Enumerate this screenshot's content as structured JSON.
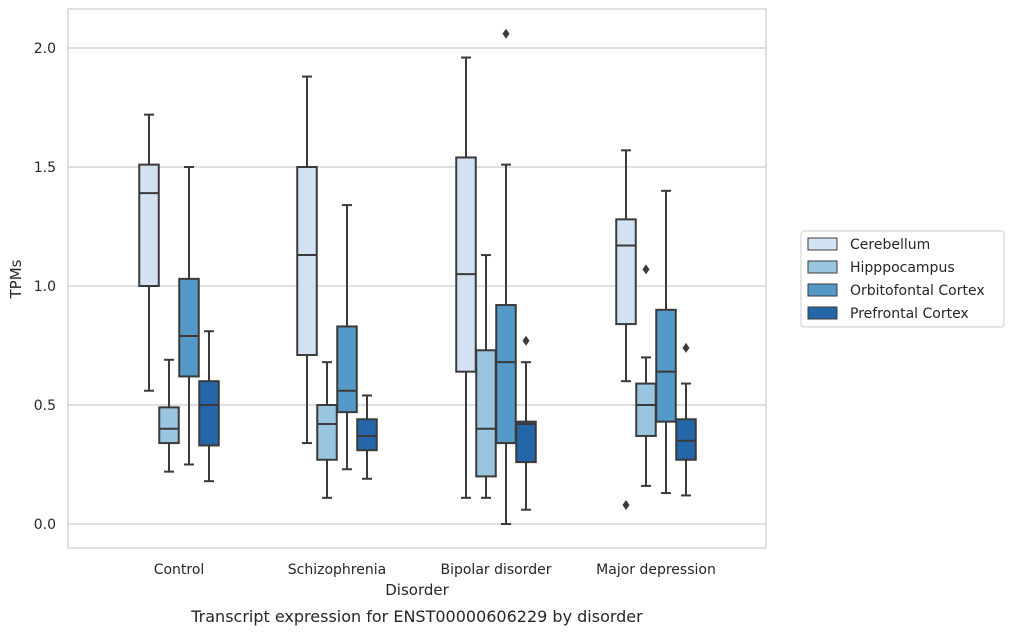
{
  "chart_data": {
    "type": "box",
    "xlabel": "Disorder",
    "ylabel": "TPMs",
    "caption": "Transcript expression for ENST00000606229 by disorder",
    "ylim": [
      -0.1,
      2.17
    ],
    "yticks": [
      "0.0",
      "0.5",
      "1.0",
      "1.5",
      "2.0"
    ],
    "ytick_values": [
      0.0,
      0.5,
      1.0,
      1.5,
      2.0
    ],
    "grid": "horizontal",
    "legend_position": "right",
    "categories": [
      "Control",
      "Schizophrenia",
      "Bipolar disorder",
      "Major depression"
    ],
    "series": [
      {
        "name": "Cerebellum",
        "color": "#d3e2f2",
        "boxes": [
          {
            "whislo": 0.56,
            "q1": 1.0,
            "med": 1.39,
            "q3": 1.51,
            "whishi": 1.72,
            "fliers": []
          },
          {
            "whislo": 0.34,
            "q1": 0.71,
            "med": 1.13,
            "q3": 1.5,
            "whishi": 1.88,
            "fliers": []
          },
          {
            "whislo": 0.11,
            "q1": 0.64,
            "med": 1.05,
            "q3": 1.54,
            "whishi": 1.96,
            "fliers": []
          },
          {
            "whislo": 0.6,
            "q1": 0.84,
            "med": 1.17,
            "q3": 1.28,
            "whishi": 1.57,
            "fliers": [
              0.08
            ]
          }
        ]
      },
      {
        "name": "Hipppocampus",
        "color": "#9ac5e0",
        "boxes": [
          {
            "whislo": 0.22,
            "q1": 0.34,
            "med": 0.4,
            "q3": 0.49,
            "whishi": 0.69,
            "fliers": []
          },
          {
            "whislo": 0.11,
            "q1": 0.27,
            "med": 0.42,
            "q3": 0.5,
            "whishi": 0.68,
            "fliers": []
          },
          {
            "whislo": 0.11,
            "q1": 0.2,
            "med": 0.4,
            "q3": 0.73,
            "whishi": 1.13,
            "fliers": []
          },
          {
            "whislo": 0.16,
            "q1": 0.37,
            "med": 0.5,
            "q3": 0.59,
            "whishi": 0.7,
            "fliers": [
              1.07
            ]
          }
        ]
      },
      {
        "name": "Orbitofontal Cortex",
        "color": "#5499c7",
        "boxes": [
          {
            "whislo": 0.25,
            "q1": 0.62,
            "med": 0.79,
            "q3": 1.03,
            "whishi": 1.5,
            "fliers": []
          },
          {
            "whislo": 0.23,
            "q1": 0.47,
            "med": 0.56,
            "q3": 0.83,
            "whishi": 1.34,
            "fliers": []
          },
          {
            "whislo": 0.0,
            "q1": 0.34,
            "med": 0.68,
            "q3": 0.92,
            "whishi": 1.51,
            "fliers": [
              2.06
            ]
          },
          {
            "whislo": 0.13,
            "q1": 0.43,
            "med": 0.64,
            "q3": 0.9,
            "whishi": 1.4,
            "fliers": []
          }
        ]
      },
      {
        "name": "Prefrontal Cortex",
        "color": "#2566a8",
        "boxes": [
          {
            "whislo": 0.18,
            "q1": 0.33,
            "med": 0.5,
            "q3": 0.6,
            "whishi": 0.81,
            "fliers": []
          },
          {
            "whislo": 0.19,
            "q1": 0.31,
            "med": 0.37,
            "q3": 0.44,
            "whishi": 0.54,
            "fliers": []
          },
          {
            "whislo": 0.06,
            "q1": 0.26,
            "med": 0.42,
            "q3": 0.43,
            "whishi": 0.68,
            "fliers": [
              0.77
            ]
          },
          {
            "whislo": 0.12,
            "q1": 0.27,
            "med": 0.35,
            "q3": 0.44,
            "whishi": 0.59,
            "fliers": [
              0.74
            ]
          }
        ]
      }
    ]
  }
}
